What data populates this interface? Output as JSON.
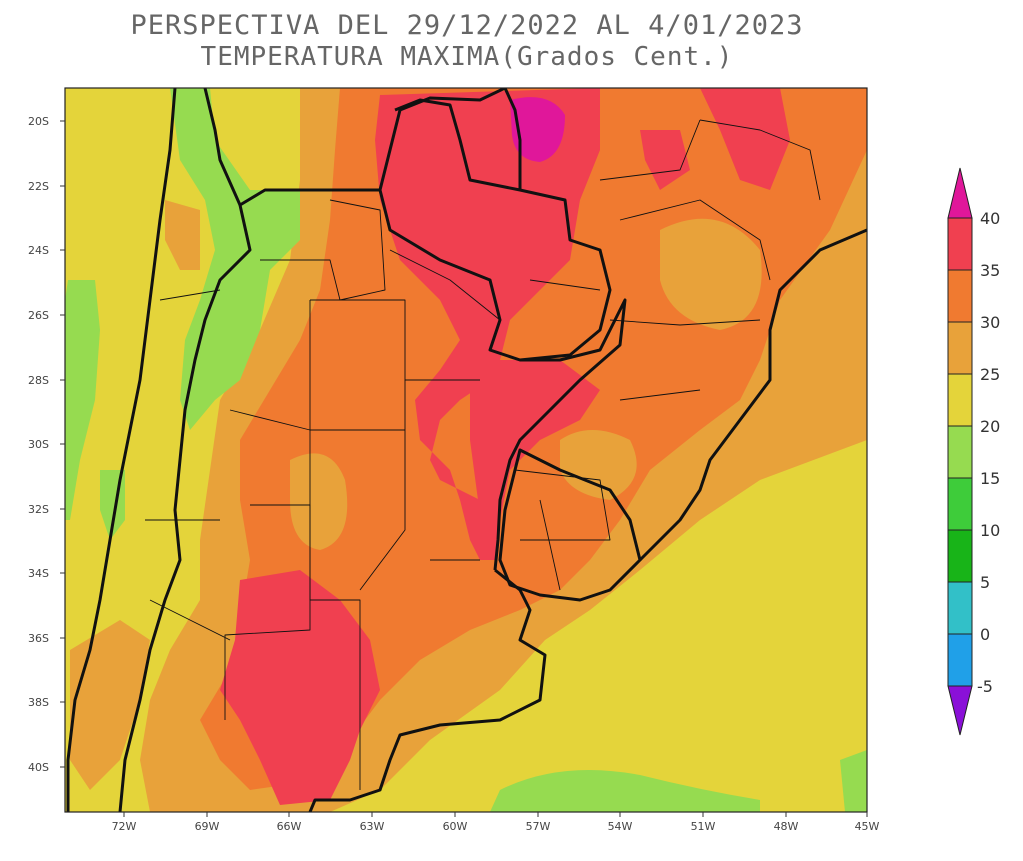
{
  "title_line1": "PERSPECTIVA DEL 29/12/2022 AL 4/01/2023",
  "title_line2": "TEMPERATURA MAXIMA(Grados Cent.)",
  "lat_labels": [
    "20S",
    "22S",
    "24S",
    "26S",
    "28S",
    "30S",
    "32S",
    "34S",
    "36S",
    "38S",
    "40S"
  ],
  "lon_labels": [
    "72W",
    "69W",
    "66W",
    "63W",
    "60W",
    "57W",
    "54W",
    "51W",
    "48W",
    "45W"
  ],
  "colorbar": {
    "labels": [
      "40",
      "35",
      "30",
      "25",
      "20",
      "15",
      "10",
      "5",
      "0",
      "-5"
    ],
    "colors": [
      "#e0179a",
      "#f04050",
      "#f07a30",
      "#e8a23a",
      "#e4d43a",
      "#96db50",
      "#3ecc3a",
      "#18b418",
      "#32c0c8",
      "#20a0e8",
      "#1460f0",
      "#2030e0",
      "#8a10d8"
    ]
  },
  "map_colors": {
    "t15_20": "#96db50",
    "t20_25": "#e4d43a",
    "t25_30": "#e8a23a",
    "t30_35": "#f07a30",
    "t35_40": "#f04050",
    "t40": "#e0179a"
  }
}
